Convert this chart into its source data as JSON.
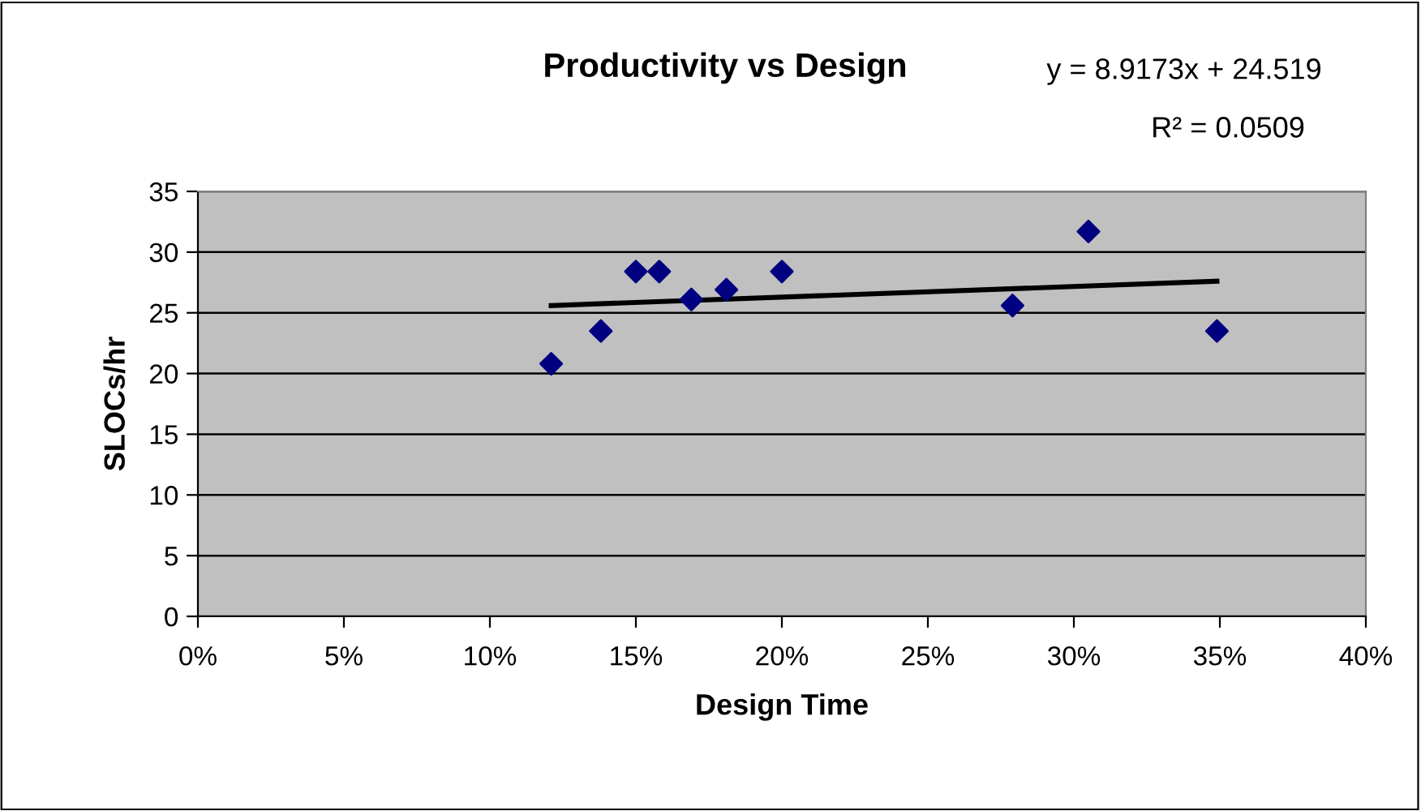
{
  "chart_data": {
    "type": "scatter",
    "title": "Productivity vs Design",
    "xlabel": "Design Time",
    "ylabel": "SLOCs/hr",
    "annotations": [
      "y = 8.9173x + 24.519",
      "R² = 0.0509"
    ],
    "series": [
      {
        "color": "#000080",
        "marker": "diamond",
        "x": [
          12.1,
          13.8,
          15.0,
          15.8,
          16.9,
          18.1,
          20.0,
          27.9,
          30.5,
          34.9
        ],
        "values": [
          20.8,
          23.5,
          28.4,
          28.4,
          26.1,
          26.9,
          28.4,
          25.6,
          31.7,
          23.5
        ]
      },
      {
        "type": "line",
        "color": "#000000",
        "marker": "none",
        "line_style": "solid",
        "x": [
          12.1,
          34.9
        ],
        "values": [
          25.6,
          27.6
        ]
      }
    ],
    "xlim": [
      0,
      40
    ],
    "xticks": [
      {
        "value": 0,
        "label": "0%"
      },
      {
        "value": 5,
        "label": "5%"
      },
      {
        "value": 10,
        "label": "10%"
      },
      {
        "value": 15,
        "label": "15%"
      },
      {
        "value": 20,
        "label": "20%"
      },
      {
        "value": 25,
        "label": "25%"
      },
      {
        "value": 30,
        "label": "30%"
      },
      {
        "value": 35,
        "label": "35%"
      },
      {
        "value": 40,
        "label": "40%"
      }
    ],
    "ylim": [
      0,
      35
    ],
    "yticks": [
      0,
      5,
      10,
      15,
      20,
      25,
      30,
      35
    ],
    "grid": "y",
    "legend": false
  }
}
